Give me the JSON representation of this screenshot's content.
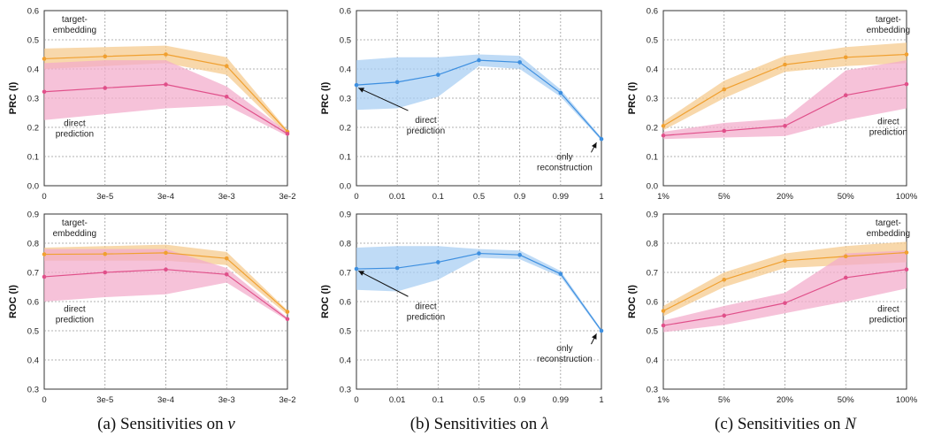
{
  "captions": [
    {
      "label": "(a) Sensitivities on ",
      "symbol": "ν"
    },
    {
      "label": "(b) Sensitivities on ",
      "symbol": "λ"
    },
    {
      "label": "(c) Sensitivities on ",
      "symbol": "N"
    }
  ],
  "chart_data": [
    {
      "id": "a-prc",
      "type": "line",
      "ylabel": "PRC (I)",
      "ylim": [
        0,
        0.6
      ],
      "yticks": [
        0,
        0.1,
        0.2,
        0.3,
        0.4,
        0.5,
        0.6
      ],
      "categories": [
        "0",
        "3e-5",
        "3e-4",
        "3e-3",
        "3e-2"
      ],
      "grid": true,
      "series": [
        {
          "color": "#f0a030",
          "band": "#f5c98a",
          "values": [
            0.435,
            0.443,
            0.45,
            0.41,
            0.185
          ],
          "upper": [
            0.47,
            0.475,
            0.48,
            0.44,
            0.19
          ],
          "lower": [
            0.4,
            0.41,
            0.42,
            0.38,
            0.175
          ]
        },
        {
          "color": "#e0508a",
          "band": "#f2aacb",
          "values": [
            0.322,
            0.335,
            0.347,
            0.305,
            0.178
          ],
          "upper": [
            0.42,
            0.43,
            0.43,
            0.34,
            0.185
          ],
          "lower": [
            0.225,
            0.245,
            0.265,
            0.275,
            0.17
          ]
        }
      ],
      "annotations": [
        {
          "text": [
            "target-",
            "embedding"
          ],
          "x": 0.5,
          "y": 0.56
        },
        {
          "text": [
            "direct",
            "prediction"
          ],
          "x": 0.5,
          "y": 0.205
        }
      ]
    },
    {
      "id": "b-prc",
      "type": "line",
      "ylabel": "PRC (I)",
      "ylim": [
        0,
        0.6
      ],
      "yticks": [
        0,
        0.1,
        0.2,
        0.3,
        0.4,
        0.5,
        0.6
      ],
      "categories": [
        "0",
        "0.01",
        "0.1",
        "0.5",
        "0.9",
        "0.99",
        "1"
      ],
      "grid": true,
      "series": [
        {
          "color": "#3d8fe0",
          "band": "#a6cdf2",
          "values": [
            0.345,
            0.355,
            0.38,
            0.43,
            0.423,
            0.318,
            0.16
          ],
          "upper": [
            0.43,
            0.44,
            0.44,
            0.45,
            0.445,
            0.33,
            0.165
          ],
          "lower": [
            0.26,
            0.265,
            0.305,
            0.41,
            0.4,
            0.305,
            0.155
          ]
        }
      ],
      "annotations": [
        {
          "text": [
            "direct",
            "prediction"
          ],
          "x": 1.7,
          "y": 0.215,
          "arrow_to": [
            0.05,
            0.335
          ]
        },
        {
          "text": [
            "only",
            "reconstruction"
          ],
          "x": 5.1,
          "y": 0.09,
          "arrow_to": [
            5.88,
            0.148
          ]
        }
      ]
    },
    {
      "id": "c-prc",
      "type": "line",
      "ylabel": "PRC (I)",
      "ylim": [
        0,
        0.6
      ],
      "yticks": [
        0,
        0.1,
        0.2,
        0.3,
        0.4,
        0.5,
        0.6
      ],
      "categories": [
        "1%",
        "5%",
        "20%",
        "50%",
        "100%"
      ],
      "grid": true,
      "series": [
        {
          "color": "#f0a030",
          "band": "#f5c98a",
          "values": [
            0.205,
            0.33,
            0.415,
            0.44,
            0.45
          ],
          "upper": [
            0.22,
            0.36,
            0.445,
            0.475,
            0.49
          ],
          "lower": [
            0.19,
            0.3,
            0.39,
            0.41,
            0.42
          ]
        },
        {
          "color": "#e0508a",
          "band": "#f2aacb",
          "values": [
            0.172,
            0.188,
            0.205,
            0.31,
            0.348
          ],
          "upper": [
            0.185,
            0.215,
            0.23,
            0.395,
            0.43
          ],
          "lower": [
            0.16,
            0.165,
            0.17,
            0.225,
            0.265
          ]
        }
      ],
      "annotations": [
        {
          "text": [
            "target-",
            "embedding"
          ],
          "x": 3.7,
          "y": 0.56
        },
        {
          "text": [
            "direct",
            "prediction"
          ],
          "x": 3.7,
          "y": 0.21
        }
      ]
    },
    {
      "id": "a-roc",
      "type": "line",
      "ylabel": "ROC (I)",
      "ylim": [
        0.3,
        0.9
      ],
      "yticks": [
        0.3,
        0.4,
        0.5,
        0.6,
        0.7,
        0.8,
        0.9
      ],
      "categories": [
        "0",
        "3e-5",
        "3e-4",
        "3e-3",
        "3e-2"
      ],
      "grid": true,
      "series": [
        {
          "color": "#f0a030",
          "band": "#f5c98a",
          "values": [
            0.762,
            0.763,
            0.767,
            0.748,
            0.565
          ],
          "upper": [
            0.785,
            0.79,
            0.795,
            0.77,
            0.57
          ],
          "lower": [
            0.74,
            0.74,
            0.74,
            0.725,
            0.555
          ]
        },
        {
          "color": "#e0508a",
          "band": "#f2aacb",
          "values": [
            0.685,
            0.7,
            0.71,
            0.693,
            0.54
          ],
          "upper": [
            0.78,
            0.78,
            0.78,
            0.715,
            0.545
          ],
          "lower": [
            0.6,
            0.615,
            0.625,
            0.665,
            0.535
          ]
        }
      ],
      "annotations": [
        {
          "text": [
            "target-",
            "embedding"
          ],
          "x": 0.5,
          "y": 0.86
        },
        {
          "text": [
            "direct",
            "prediction"
          ],
          "x": 0.5,
          "y": 0.565
        }
      ]
    },
    {
      "id": "b-roc",
      "type": "line",
      "ylabel": "ROC (I)",
      "ylim": [
        0.3,
        0.9
      ],
      "yticks": [
        0.3,
        0.4,
        0.5,
        0.6,
        0.7,
        0.8,
        0.9
      ],
      "categories": [
        "0",
        "0.01",
        "0.1",
        "0.5",
        "0.9",
        "0.99",
        "1"
      ],
      "grid": true,
      "series": [
        {
          "color": "#3d8fe0",
          "band": "#a6cdf2",
          "values": [
            0.712,
            0.715,
            0.735,
            0.765,
            0.76,
            0.695,
            0.5
          ],
          "upper": [
            0.785,
            0.79,
            0.79,
            0.78,
            0.775,
            0.705,
            0.505
          ],
          "lower": [
            0.64,
            0.635,
            0.675,
            0.75,
            0.745,
            0.685,
            0.495
          ]
        }
      ],
      "annotations": [
        {
          "text": [
            "direct",
            "prediction"
          ],
          "x": 1.7,
          "y": 0.575,
          "arrow_to": [
            0.05,
            0.705
          ]
        },
        {
          "text": [
            "only",
            "reconstruction"
          ],
          "x": 5.1,
          "y": 0.43,
          "arrow_to": [
            5.88,
            0.49
          ]
        }
      ]
    },
    {
      "id": "c-roc",
      "type": "line",
      "ylabel": "ROC (I)",
      "ylim": [
        0.3,
        0.9
      ],
      "yticks": [
        0.3,
        0.4,
        0.5,
        0.6,
        0.7,
        0.8,
        0.9
      ],
      "categories": [
        "1%",
        "5%",
        "20%",
        "50%",
        "100%"
      ],
      "grid": true,
      "series": [
        {
          "color": "#f0a030",
          "band": "#f5c98a",
          "values": [
            0.568,
            0.675,
            0.74,
            0.755,
            0.768
          ],
          "upper": [
            0.585,
            0.7,
            0.765,
            0.79,
            0.805
          ],
          "lower": [
            0.55,
            0.65,
            0.715,
            0.725,
            0.735
          ]
        },
        {
          "color": "#e0508a",
          "band": "#f2aacb",
          "values": [
            0.518,
            0.552,
            0.595,
            0.682,
            0.71
          ],
          "upper": [
            0.535,
            0.585,
            0.63,
            0.765,
            0.775
          ],
          "lower": [
            0.495,
            0.52,
            0.56,
            0.6,
            0.645
          ]
        }
      ],
      "annotations": [
        {
          "text": [
            "target-",
            "embedding"
          ],
          "x": 3.7,
          "y": 0.86
        },
        {
          "text": [
            "direct",
            "prediction"
          ],
          "x": 3.7,
          "y": 0.565
        }
      ]
    }
  ]
}
